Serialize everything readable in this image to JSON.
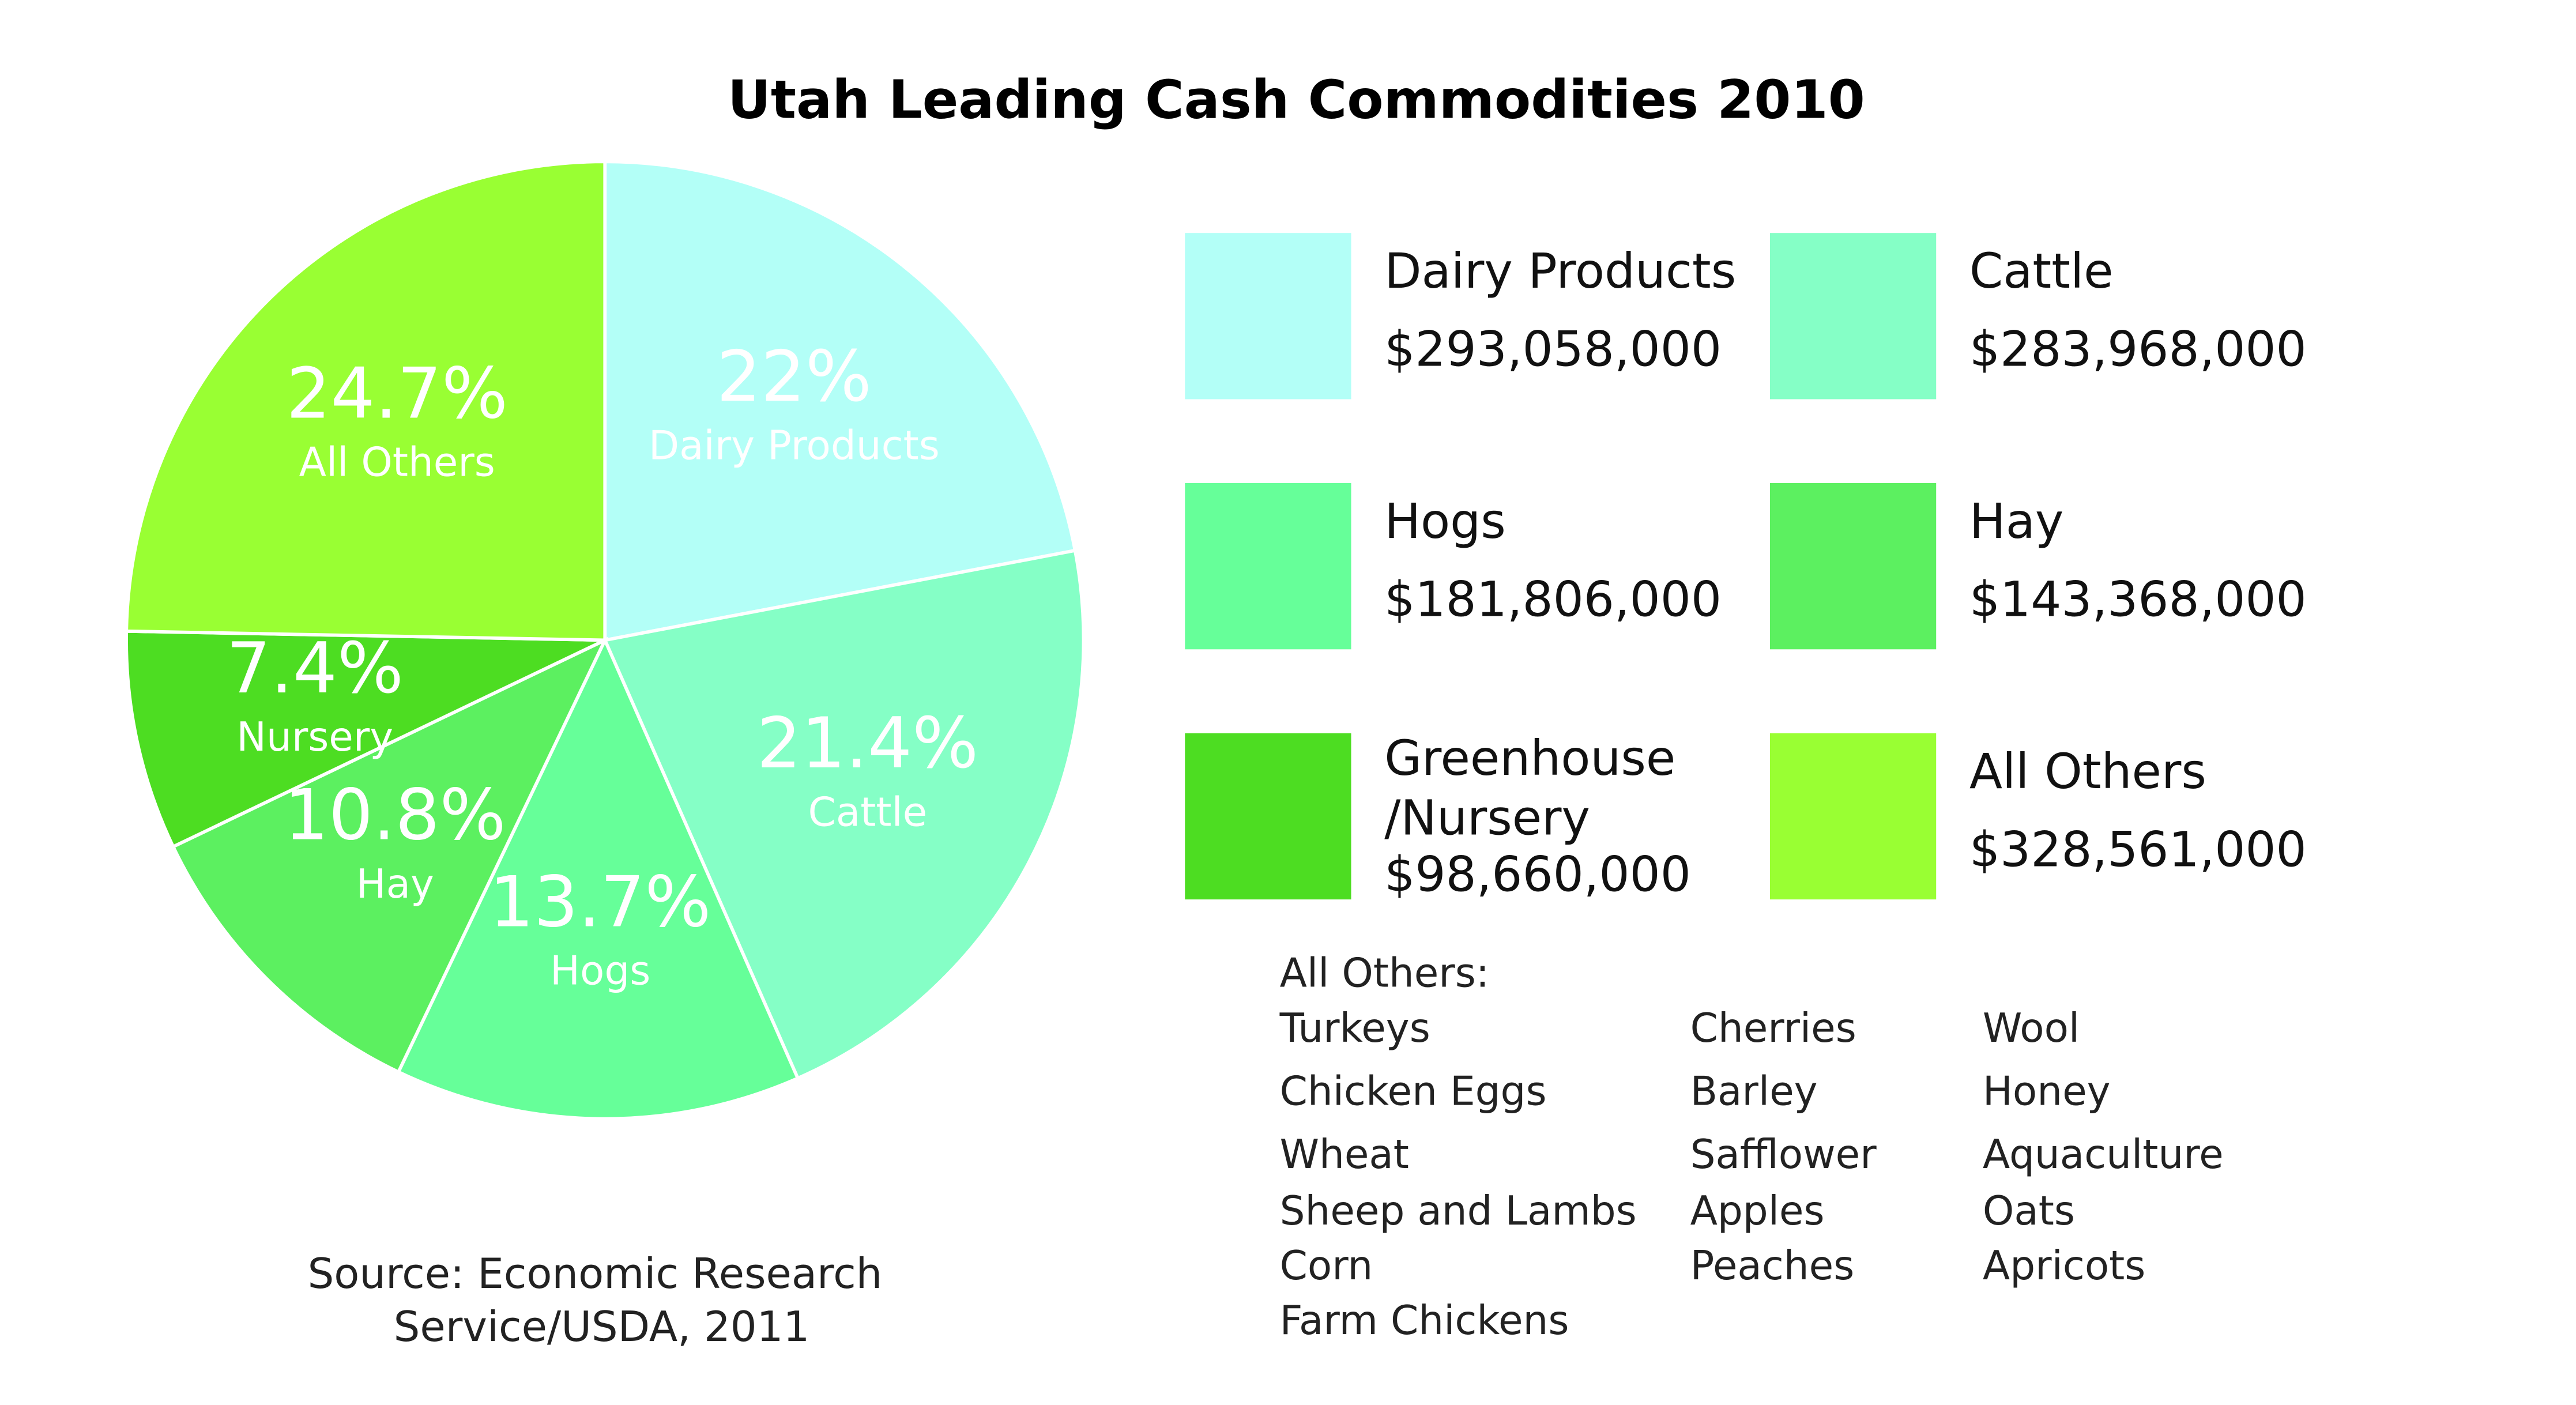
{
  "chart_data": {
    "type": "pie",
    "title": "Utah Leading Cash Commodities 2010",
    "categories": [
      "Dairy Products",
      "Cattle",
      "Hogs",
      "Hay",
      "Nursery",
      "All Others"
    ],
    "values": [
      22,
      21.4,
      13.7,
      10.8,
      7.4,
      24.7
    ],
    "value_labels": [
      "22%",
      "21.4%",
      "13.7%",
      "10.8%",
      "7.4%",
      "24.7%"
    ],
    "colors": [
      "#b3fff7",
      "#85ffc6",
      "#66ff99",
      "#5cf060",
      "#4ddd22",
      "#99ff33"
    ],
    "legend_labels": [
      "Dairy Products",
      "Cattle",
      "Hogs",
      "Hay",
      [
        "Greenhouse",
        "/Nursery"
      ],
      "All Others"
    ],
    "amounts": [
      293058000,
      283968000,
      181806000,
      143368000,
      98660000,
      328561000
    ],
    "amount_labels": [
      "$293,058,000",
      "$283,968,000",
      "$181,806,000",
      "$143,368,000",
      "$98,660,000",
      "$328,561,000"
    ]
  },
  "others": {
    "title": "All Others:",
    "columns": [
      [
        "Turkeys",
        "Chicken Eggs",
        "Wheat",
        "Sheep and Lambs",
        "Corn",
        "Farm Chickens"
      ],
      [
        "Cherries",
        "Barley",
        "Safflower",
        "Apples",
        "Peaches"
      ],
      [
        "Wool",
        "Honey",
        "Aquaculture",
        "Oats",
        "Apricots"
      ]
    ]
  },
  "source": [
    "Source: Economic Research",
    "Service/USDA, 2011"
  ]
}
